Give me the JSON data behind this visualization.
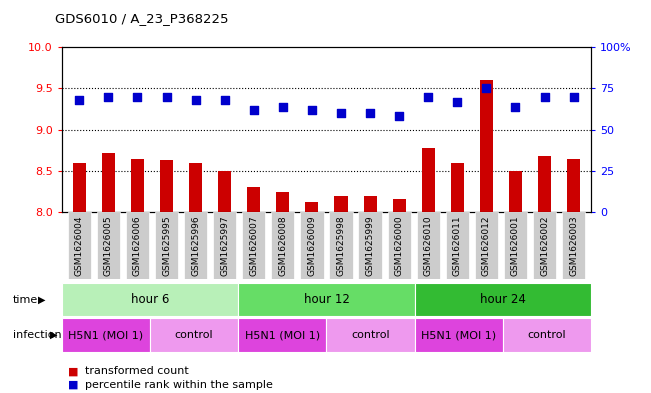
{
  "title": "GDS6010 / A_23_P368225",
  "samples": [
    "GSM1626004",
    "GSM1626005",
    "GSM1626006",
    "GSM1625995",
    "GSM1625996",
    "GSM1625997",
    "GSM1626007",
    "GSM1626008",
    "GSM1626009",
    "GSM1625998",
    "GSM1625999",
    "GSM1626000",
    "GSM1626010",
    "GSM1626011",
    "GSM1626012",
    "GSM1626001",
    "GSM1626002",
    "GSM1626003"
  ],
  "transformed_count": [
    8.6,
    8.72,
    8.65,
    8.63,
    8.6,
    8.5,
    8.3,
    8.25,
    8.12,
    8.2,
    8.2,
    8.16,
    8.78,
    8.6,
    9.6,
    8.5,
    8.68,
    8.64
  ],
  "percentile_rank": [
    68,
    70,
    70,
    70,
    68,
    68,
    62,
    64,
    62,
    60,
    60,
    58,
    70,
    67,
    75,
    64,
    70,
    70
  ],
  "bar_color": "#cc0000",
  "dot_color": "#0000cc",
  "ylim_left": [
    8.0,
    10.0
  ],
  "ylim_right": [
    0,
    100
  ],
  "yticks_left": [
    8.0,
    8.5,
    9.0,
    9.5,
    10.0
  ],
  "yticks_right": [
    0,
    25,
    50,
    75,
    100
  ],
  "ytick_labels_right": [
    "0",
    "25",
    "50",
    "75",
    "100%"
  ],
  "grid_values": [
    8.5,
    9.0,
    9.5
  ],
  "time_groups": [
    {
      "label": "hour 6",
      "start": 0,
      "end": 6,
      "color": "#b8f0b8"
    },
    {
      "label": "hour 12",
      "start": 6,
      "end": 12,
      "color": "#66dd66"
    },
    {
      "label": "hour 24",
      "start": 12,
      "end": 18,
      "color": "#33bb33"
    }
  ],
  "infection_groups": [
    {
      "label": "H5N1 (MOI 1)",
      "start": 0,
      "end": 3,
      "color": "#dd44dd"
    },
    {
      "label": "control",
      "start": 3,
      "end": 6,
      "color": "#ee99ee"
    },
    {
      "label": "H5N1 (MOI 1)",
      "start": 6,
      "end": 9,
      "color": "#dd44dd"
    },
    {
      "label": "control",
      "start": 9,
      "end": 12,
      "color": "#ee99ee"
    },
    {
      "label": "H5N1 (MOI 1)",
      "start": 12,
      "end": 15,
      "color": "#dd44dd"
    },
    {
      "label": "control",
      "start": 15,
      "end": 18,
      "color": "#ee99ee"
    }
  ],
  "legend_items": [
    {
      "label": "transformed count",
      "color": "#cc0000"
    },
    {
      "label": "percentile rank within the sample",
      "color": "#0000cc"
    }
  ],
  "background_color": "#ffffff",
  "bar_width": 0.45,
  "dot_size": 35,
  "xlabel_bg": "#cccccc"
}
